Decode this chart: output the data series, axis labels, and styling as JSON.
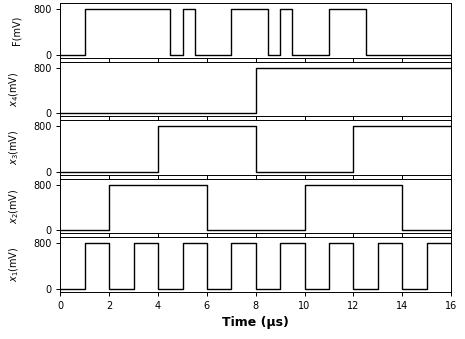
{
  "time_end": 16,
  "ylim": [
    -50,
    900
  ],
  "yticks": [
    0,
    800
  ],
  "ylabel_fontsize": 7,
  "xlabel": "Time (μs)",
  "xlabel_fontsize": 9,
  "signals": {
    "F": {
      "label": "F(mV)",
      "use_math": false,
      "transitions": [
        0,
        0,
        1,
        800,
        4.5,
        0,
        5,
        800,
        5.5,
        0,
        7,
        800,
        8.5,
        0,
        9,
        800,
        9.5,
        0,
        11,
        800,
        12.5,
        0,
        16,
        0
      ]
    },
    "x4": {
      "label": "$x_4$(mV)",
      "use_math": true,
      "transitions": [
        0,
        0,
        8,
        800,
        16,
        800
      ]
    },
    "x3": {
      "label": "$x_3$(mV)",
      "use_math": true,
      "transitions": [
        0,
        0,
        4,
        800,
        8,
        0,
        12,
        800,
        16,
        800
      ]
    },
    "x2": {
      "label": "$x_2$(mV)",
      "use_math": true,
      "transitions": [
        0,
        0,
        2,
        800,
        6,
        0,
        10,
        800,
        14,
        0,
        16,
        0
      ]
    },
    "x1": {
      "label": "$x_1$(mV)",
      "use_math": true,
      "transitions": [
        0,
        0,
        1,
        800,
        2,
        0,
        3,
        800,
        4,
        0,
        5,
        800,
        6,
        0,
        7,
        800,
        8,
        0,
        9,
        800,
        10,
        0,
        11,
        800,
        12,
        0,
        13,
        800,
        14,
        0,
        15,
        800,
        16,
        800
      ]
    }
  },
  "signal_order": [
    "F",
    "x4",
    "x3",
    "x2",
    "x1"
  ],
  "line_color": "black",
  "line_width": 1.0,
  "bg_color": "white",
  "xticks": [
    0,
    2,
    4,
    6,
    8,
    10,
    12,
    14,
    16
  ]
}
